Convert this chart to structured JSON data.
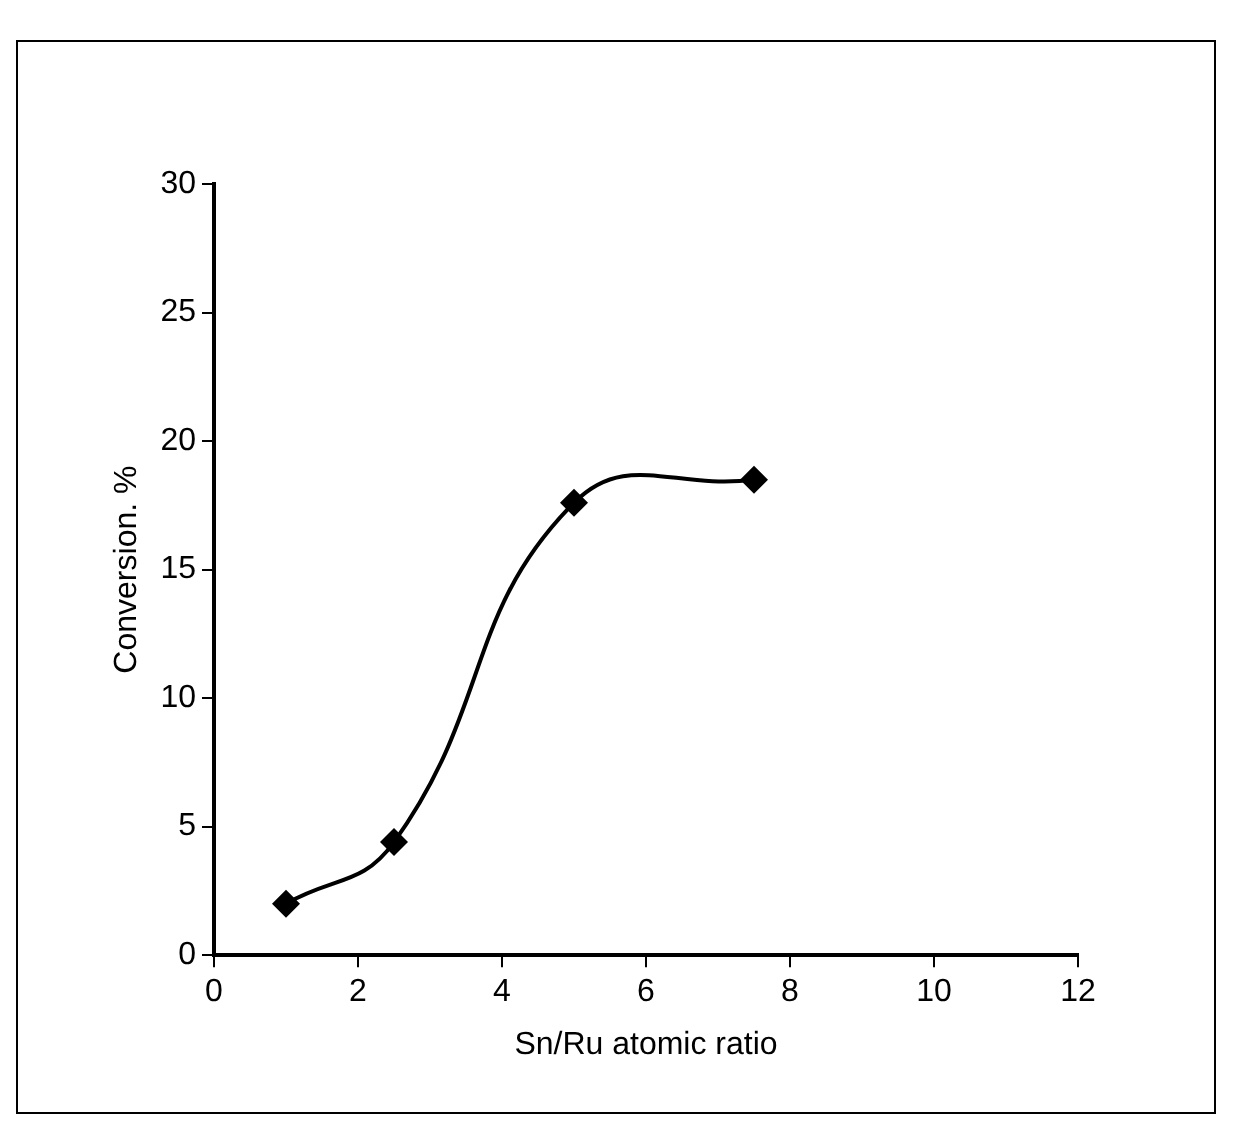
{
  "chart_data": {
    "type": "line",
    "xlabel": "Sn/Ru atomic ratio",
    "ylabel": "Conversion. %",
    "x": [
      1,
      2.5,
      5,
      7.5
    ],
    "series": [
      {
        "color": "#000000",
        "values": [
          2.0,
          4.4,
          17.6,
          18.5
        ]
      }
    ],
    "xlim": [
      0,
      12
    ],
    "xticks": [
      0,
      2,
      4,
      6,
      8,
      10,
      12
    ],
    "ylim": [
      0,
      30
    ],
    "yticks": [
      0,
      5,
      10,
      15,
      20,
      25,
      30
    ],
    "grid": false,
    "legend": false,
    "marker": "diamond",
    "line_style": "solid"
  }
}
